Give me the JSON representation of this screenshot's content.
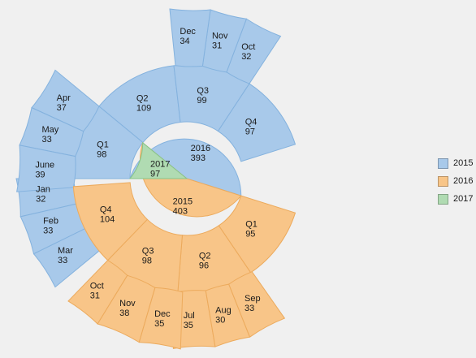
{
  "chart_data": {
    "type": "sunburst",
    "title": "",
    "legend_position": "right",
    "colors": {
      "2015": {
        "fill": "#a8c9ea",
        "stroke": "#84b2de"
      },
      "2016": {
        "fill": "#f8c588",
        "stroke": "#ecaa5c"
      },
      "2017": {
        "fill": "#b0dbb2",
        "stroke": "#86c489"
      }
    },
    "nodes": [
      {
        "name": "2015",
        "value": 403,
        "children": [
          {
            "name": "Q1",
            "value": 98,
            "children": [
              {
                "name": "Jan",
                "value": 32
              },
              {
                "name": "Feb",
                "value": 33
              },
              {
                "name": "Mar",
                "value": 33
              }
            ]
          },
          {
            "name": "Q2",
            "value": 109,
            "children": [
              {
                "name": "Apr",
                "value": 37
              },
              {
                "name": "May",
                "value": 33
              },
              {
                "name": "June",
                "value": 39
              }
            ]
          },
          {
            "name": "Q3",
            "value": 99,
            "children": []
          },
          {
            "name": "Q4",
            "value": 97,
            "children": [
              {
                "name": "Oct",
                "value": 32
              },
              {
                "name": "Nov",
                "value": 31
              },
              {
                "name": "Dec",
                "value": 34
              }
            ]
          }
        ]
      },
      {
        "name": "2016",
        "value": 393,
        "children": [
          {
            "name": "Q1",
            "value": 95,
            "children": []
          },
          {
            "name": "Q2",
            "value": 96,
            "children": []
          },
          {
            "name": "Q3",
            "value": 98,
            "children": [
              {
                "name": "Jul",
                "value": 35
              },
              {
                "name": "Aug",
                "value": 30
              },
              {
                "name": "Sep",
                "value": 33
              }
            ]
          },
          {
            "name": "Q4",
            "value": 104,
            "children": [
              {
                "name": "Oct",
                "value": 31
              },
              {
                "name": "Nov",
                "value": 38
              },
              {
                "name": "Dec",
                "value": 35
              }
            ]
          }
        ]
      },
      {
        "name": "2017",
        "value": 97,
        "children": []
      }
    ],
    "legend": [
      "2015",
      "2016",
      "2017"
    ]
  }
}
